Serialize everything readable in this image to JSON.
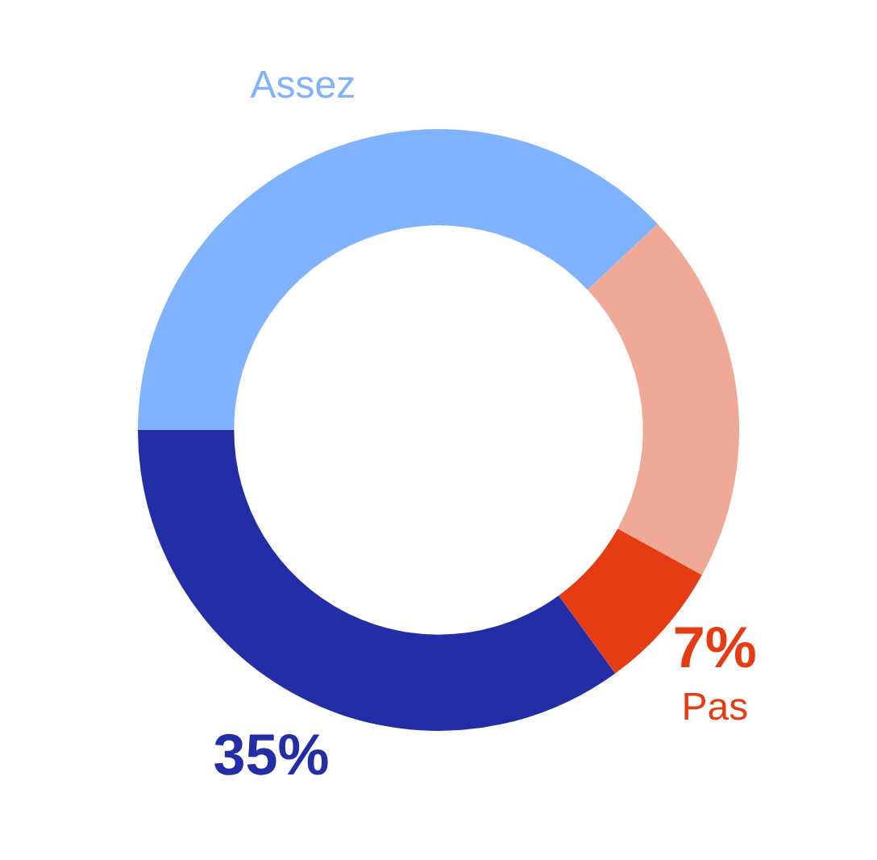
{
  "chart_data": {
    "type": "donut",
    "categories": [
      "Assez",
      null,
      "Pas",
      null
    ],
    "values": [
      38,
      20,
      7,
      35
    ],
    "colors": [
      "#80b2fd",
      "#f0a996",
      "#e53c14",
      "#232ea6"
    ],
    "value_labels": [
      null,
      null,
      "7%",
      "35%"
    ]
  }
}
